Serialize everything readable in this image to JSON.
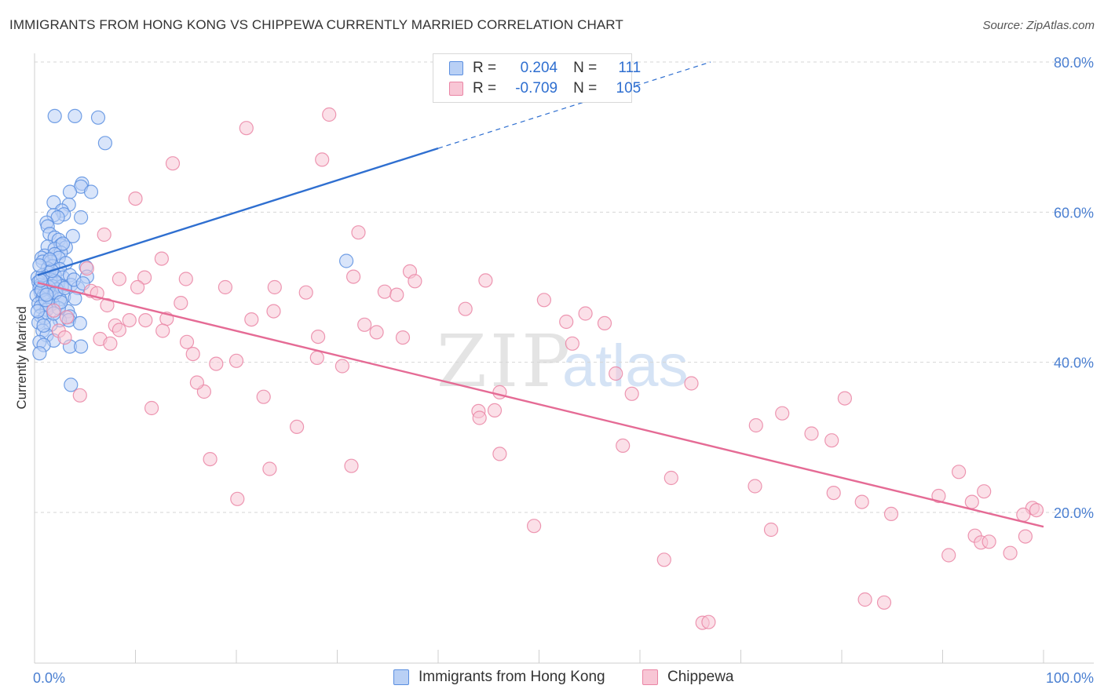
{
  "header": {
    "title": "IMMIGRANTS FROM HONG KONG VS CHIPPEWA CURRENTLY MARRIED CORRELATION CHART",
    "source": "Source: ZipAtlas.com"
  },
  "watermark": {
    "zip": "ZIP",
    "atlas": "atlas"
  },
  "legend": {
    "r_label": "R =",
    "n_label": "N =",
    "series": [
      {
        "r": "0.204",
        "n": "111"
      },
      {
        "r": "-0.709",
        "n": "105"
      }
    ]
  },
  "chart_data": {
    "type": "scatter",
    "title": "IMMIGRANTS FROM HONG KONG VS CHIPPEWA CURRENTLY MARRIED CORRELATION CHART",
    "xlabel": "",
    "ylabel": "Currently Married",
    "xlim": [
      0,
      100
    ],
    "ylim": [
      0,
      83
    ],
    "y_ticks": [
      20,
      40,
      60,
      80
    ],
    "y_tick_labels": [
      "20.0%",
      "40.0%",
      "60.0%",
      "80.0%"
    ],
    "x_tick_labels": [
      "0.0%",
      "100.0%"
    ],
    "grid": true,
    "legend_position": "top-center",
    "series": [
      {
        "name": "Immigrants from Hong Kong",
        "color": "#5b8fe0",
        "fill": "#b9d0f5",
        "r": 0.204,
        "n": 111,
        "trend": {
          "x_start": 0.3,
          "y_start": 51.6,
          "x_end": 40,
          "y_end": 68.5,
          "dashed_to_x": 67,
          "dashed_to_y": 80
        },
        "points": [
          [
            2.0,
            72.8
          ],
          [
            4.0,
            72.8
          ],
          [
            6.3,
            72.6
          ],
          [
            7.0,
            69.2
          ],
          [
            4.7,
            63.8
          ],
          [
            4.6,
            63.4
          ],
          [
            3.5,
            62.7
          ],
          [
            5.6,
            62.7
          ],
          [
            1.9,
            61.3
          ],
          [
            3.4,
            61.0
          ],
          [
            2.7,
            60.2
          ],
          [
            2.9,
            59.7
          ],
          [
            1.9,
            59.6
          ],
          [
            2.3,
            59.3
          ],
          [
            4.6,
            59.3
          ],
          [
            1.2,
            58.6
          ],
          [
            1.3,
            58.1
          ],
          [
            1.5,
            57.1
          ],
          [
            3.8,
            56.8
          ],
          [
            2.0,
            56.6
          ],
          [
            2.4,
            56.3
          ],
          [
            2.6,
            55.6
          ],
          [
            1.3,
            55.4
          ],
          [
            3.1,
            55.3
          ],
          [
            2.0,
            55.1
          ],
          [
            1.0,
            54.2
          ],
          [
            2.6,
            54.6
          ],
          [
            2.0,
            54.4
          ],
          [
            2.4,
            53.9
          ],
          [
            0.7,
            53.9
          ],
          [
            0.8,
            53.4
          ],
          [
            1.6,
            53.4
          ],
          [
            3.1,
            53.2
          ],
          [
            1.8,
            52.8
          ],
          [
            1.3,
            52.5
          ],
          [
            2.5,
            52.4
          ],
          [
            5.1,
            52.7
          ],
          [
            1.4,
            51.9
          ],
          [
            2.0,
            51.6
          ],
          [
            0.3,
            51.3
          ],
          [
            1.1,
            51.2
          ],
          [
            2.8,
            51.3
          ],
          [
            3.5,
            51.6
          ],
          [
            5.2,
            51.4
          ],
          [
            1.6,
            51.0
          ],
          [
            0.4,
            50.7
          ],
          [
            2.3,
            50.5
          ],
          [
            0.6,
            50.3
          ],
          [
            1.2,
            50.3
          ],
          [
            3.6,
            50.3
          ],
          [
            0.9,
            50.1
          ],
          [
            1.8,
            50.1
          ],
          [
            2.7,
            50.1
          ],
          [
            0.5,
            49.9
          ],
          [
            4.3,
            49.9
          ],
          [
            2.2,
            49.7
          ],
          [
            1.3,
            49.6
          ],
          [
            0.6,
            49.4
          ],
          [
            1.4,
            49.1
          ],
          [
            0.2,
            48.9
          ],
          [
            0.9,
            48.9
          ],
          [
            1.7,
            48.8
          ],
          [
            2.9,
            48.7
          ],
          [
            0.8,
            48.5
          ],
          [
            4.0,
            48.5
          ],
          [
            2.5,
            48.4
          ],
          [
            1.0,
            48.1
          ],
          [
            1.8,
            47.8
          ],
          [
            0.4,
            47.8
          ],
          [
            1.5,
            47.6
          ],
          [
            0.6,
            47.4
          ],
          [
            1.2,
            47.0
          ],
          [
            3.3,
            46.8
          ],
          [
            0.6,
            46.2
          ],
          [
            3.5,
            46.1
          ],
          [
            1.0,
            45.9
          ],
          [
            2.5,
            45.6
          ],
          [
            3.4,
            45.6
          ],
          [
            0.4,
            45.3
          ],
          [
            4.5,
            45.2
          ],
          [
            1.6,
            45.0
          ],
          [
            0.8,
            44.2
          ],
          [
            1.2,
            43.6
          ],
          [
            1.9,
            42.9
          ],
          [
            0.5,
            42.7
          ],
          [
            0.9,
            42.3
          ],
          [
            3.5,
            42.1
          ],
          [
            4.6,
            42.1
          ],
          [
            0.5,
            41.2
          ],
          [
            3.6,
            37.0
          ],
          [
            30.9,
            53.5
          ],
          [
            1.4,
            50.0
          ],
          [
            0.7,
            49.6
          ],
          [
            2.1,
            49.3
          ],
          [
            1.1,
            48.3
          ],
          [
            2.0,
            50.8
          ],
          [
            0.8,
            51.6
          ],
          [
            1.7,
            52.2
          ],
          [
            3.0,
            49.9
          ],
          [
            0.3,
            46.8
          ],
          [
            2.4,
            47.2
          ],
          [
            1.5,
            53.7
          ],
          [
            2.8,
            55.8
          ],
          [
            0.9,
            44.9
          ],
          [
            1.9,
            46.5
          ],
          [
            3.9,
            51.0
          ],
          [
            0.5,
            52.9
          ],
          [
            2.6,
            48.0
          ],
          [
            1.2,
            49.0
          ],
          [
            4.8,
            50.5
          ],
          [
            0.6,
            50.9
          ]
        ]
      },
      {
        "name": "Chippewa",
        "color": "#ea85a5",
        "fill": "#f8c6d5",
        "r": -0.709,
        "n": 105,
        "trend": {
          "x_start": 0.3,
          "y_start": 50.6,
          "x_end": 100,
          "y_end": 18.1
        },
        "points": [
          [
            29.2,
            73.0
          ],
          [
            21.0,
            71.2
          ],
          [
            28.5,
            67.0
          ],
          [
            13.7,
            66.5
          ],
          [
            10.0,
            61.8
          ],
          [
            32.1,
            57.3
          ],
          [
            6.9,
            57.0
          ],
          [
            12.6,
            53.8
          ],
          [
            5.2,
            52.5
          ],
          [
            10.9,
            51.3
          ],
          [
            37.2,
            52.1
          ],
          [
            31.6,
            51.4
          ],
          [
            8.4,
            51.1
          ],
          [
            15.0,
            51.1
          ],
          [
            37.7,
            50.8
          ],
          [
            44.7,
            50.9
          ],
          [
            18.9,
            50.0
          ],
          [
            10.2,
            50.0
          ],
          [
            23.8,
            50.0
          ],
          [
            26.9,
            49.3
          ],
          [
            5.6,
            49.5
          ],
          [
            34.7,
            49.4
          ],
          [
            6.2,
            49.2
          ],
          [
            50.5,
            48.3
          ],
          [
            14.5,
            47.9
          ],
          [
            7.2,
            47.6
          ],
          [
            42.7,
            47.1
          ],
          [
            23.7,
            46.8
          ],
          [
            1.9,
            46.9
          ],
          [
            9.4,
            45.6
          ],
          [
            13.1,
            45.8
          ],
          [
            54.6,
            46.5
          ],
          [
            21.5,
            45.7
          ],
          [
            56.5,
            45.2
          ],
          [
            11.0,
            45.6
          ],
          [
            52.7,
            45.4
          ],
          [
            32.7,
            45.0
          ],
          [
            8.0,
            44.9
          ],
          [
            8.4,
            44.3
          ],
          [
            12.7,
            44.2
          ],
          [
            2.4,
            44.2
          ],
          [
            33.9,
            44.0
          ],
          [
            28.1,
            43.4
          ],
          [
            36.5,
            43.3
          ],
          [
            6.5,
            43.1
          ],
          [
            3.0,
            43.3
          ],
          [
            15.1,
            42.7
          ],
          [
            7.5,
            42.5
          ],
          [
            53.3,
            42.5
          ],
          [
            15.7,
            41.1
          ],
          [
            28.0,
            40.6
          ],
          [
            20.0,
            40.2
          ],
          [
            18.0,
            39.8
          ],
          [
            30.5,
            39.5
          ],
          [
            57.6,
            38.5
          ],
          [
            65.1,
            37.2
          ],
          [
            46.1,
            36.0
          ],
          [
            16.8,
            36.1
          ],
          [
            22.7,
            35.4
          ],
          [
            4.5,
            35.6
          ],
          [
            80.3,
            35.2
          ],
          [
            59.2,
            35.8
          ],
          [
            11.6,
            33.9
          ],
          [
            45.6,
            33.6
          ],
          [
            74.1,
            33.2
          ],
          [
            44.0,
            33.5
          ],
          [
            44.1,
            32.6
          ],
          [
            71.5,
            31.6
          ],
          [
            26.0,
            31.4
          ],
          [
            77.0,
            30.5
          ],
          [
            79.0,
            29.6
          ],
          [
            58.3,
            28.9
          ],
          [
            46.1,
            27.8
          ],
          [
            17.4,
            27.1
          ],
          [
            31.4,
            26.2
          ],
          [
            23.3,
            25.8
          ],
          [
            91.6,
            25.4
          ],
          [
            63.1,
            24.6
          ],
          [
            71.4,
            23.5
          ],
          [
            94.1,
            22.8
          ],
          [
            79.2,
            22.6
          ],
          [
            89.6,
            22.2
          ],
          [
            20.1,
            21.8
          ],
          [
            82.0,
            21.4
          ],
          [
            92.9,
            21.4
          ],
          [
            98.9,
            20.6
          ],
          [
            99.3,
            20.3
          ],
          [
            84.9,
            19.8
          ],
          [
            98.0,
            19.7
          ],
          [
            49.5,
            18.2
          ],
          [
            73.0,
            17.7
          ],
          [
            93.2,
            16.9
          ],
          [
            98.2,
            16.8
          ],
          [
            93.8,
            16.0
          ],
          [
            94.6,
            16.1
          ],
          [
            90.6,
            14.3
          ],
          [
            96.7,
            14.6
          ],
          [
            62.4,
            13.7
          ],
          [
            82.3,
            8.4
          ],
          [
            84.2,
            8.0
          ],
          [
            66.2,
            5.3
          ],
          [
            66.8,
            5.4
          ],
          [
            16.1,
            37.3
          ],
          [
            3.2,
            46.0
          ],
          [
            35.9,
            49.0
          ]
        ]
      }
    ]
  },
  "bottom_legend": {
    "items": [
      {
        "label": "Immigrants from Hong Kong"
      },
      {
        "label": "Chippewa"
      }
    ]
  }
}
